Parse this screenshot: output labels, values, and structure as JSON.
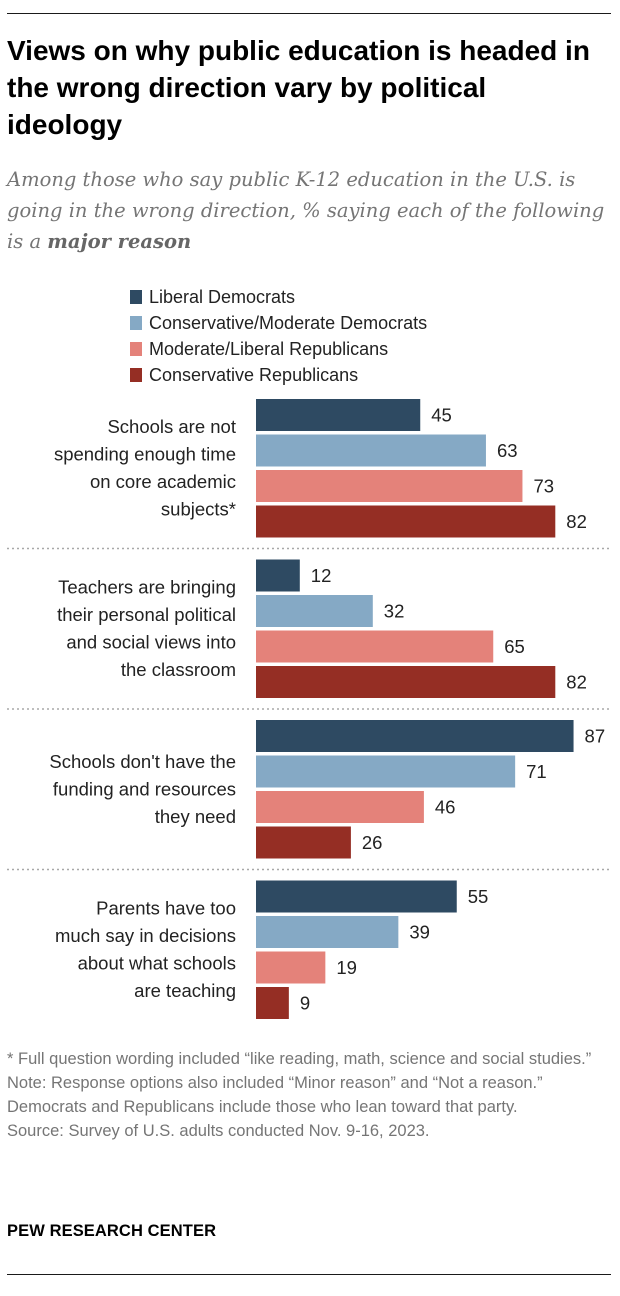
{
  "title": "Views on why public education is headed in the wrong direction vary by political ideology",
  "subtitle_pre": "Among those who say public K-12 education in the U.S. is going in the wrong direction, % saying each of the following is a ",
  "subtitle_bold": "major reason",
  "footnote_star": "* Full question wording included “like reading, math, science and social studies.”",
  "note": "Note: Response options also included “Minor reason” and “Not a reason.” Democrats and Republicans include those who lean toward that party.",
  "source": "Source: Survey of U.S. adults conducted Nov. 9-16, 2023.",
  "logo": "PEW RESEARCH CENTER",
  "chart_data": {
    "type": "bar",
    "orientation": "horizontal",
    "categories": [
      [
        "Schools are not",
        "spending enough time",
        "on core academic",
        "subjects*"
      ],
      [
        "Teachers are bringing",
        "their personal political",
        "and social views into",
        "the classroom"
      ],
      [
        "Schools don't have the",
        "funding and resources",
        "they need"
      ],
      [
        "Parents have too",
        "much say in decisions",
        "about what schools",
        "are teaching"
      ]
    ],
    "series": [
      {
        "name": "Liberal Democrats",
        "color": "#2e4a62",
        "values": [
          45,
          12,
          87,
          55
        ]
      },
      {
        "name": "Conservative/Moderate Democrats",
        "color": "#85a9c5",
        "values": [
          63,
          32,
          71,
          39
        ]
      },
      {
        "name": "Moderate/Liberal Republicans",
        "color": "#e4827a",
        "values": [
          73,
          65,
          46,
          19
        ]
      },
      {
        "name": "Conservative Republicans",
        "color": "#952e24",
        "values": [
          82,
          82,
          26,
          9
        ]
      }
    ],
    "xlim": [
      0,
      100
    ],
    "legend_position": "top",
    "grid": false
  }
}
